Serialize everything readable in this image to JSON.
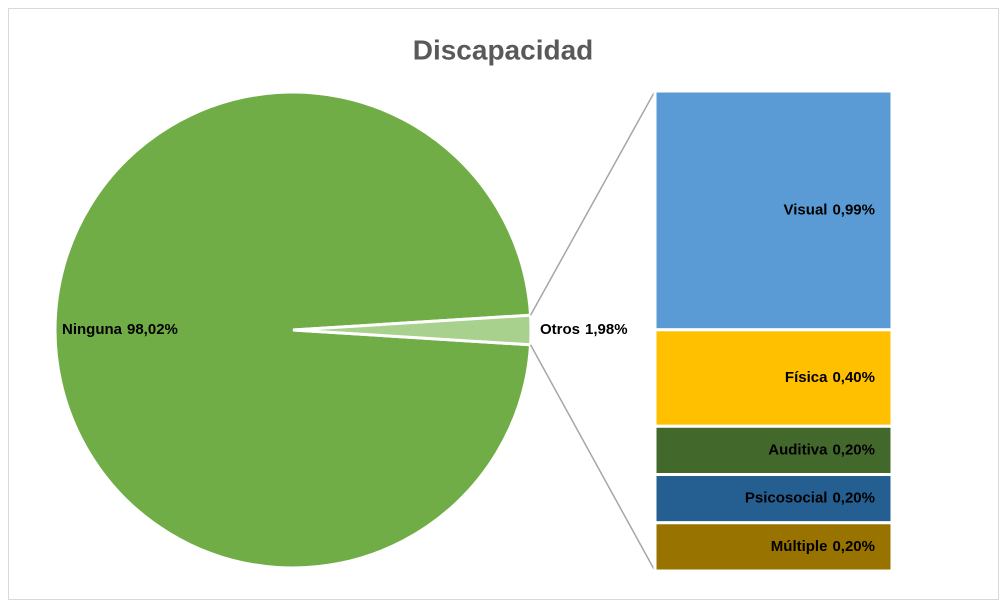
{
  "chart_data": [
    {
      "type": "pie",
      "title": "Discapacidad",
      "categories": [
        "Ninguna",
        "Otros"
      ],
      "values": [
        98.02,
        1.98
      ],
      "value_labels": [
        "98,02%",
        "1,98%"
      ],
      "colors": [
        "#70ad47",
        "#a9d18e"
      ]
    },
    {
      "type": "bar",
      "categories": [
        "Visual",
        "Física",
        "Auditiva",
        "Psicosocial",
        "Múltiple"
      ],
      "values": [
        0.99,
        0.4,
        0.2,
        0.2,
        0.2
      ],
      "value_labels": [
        "0,99%",
        "0,40%",
        "0,20%",
        "0,20%",
        "0,20%"
      ],
      "colors": [
        "#5b9bd5",
        "#ffc000",
        "#43682b",
        "#255e91",
        "#997300"
      ]
    }
  ]
}
